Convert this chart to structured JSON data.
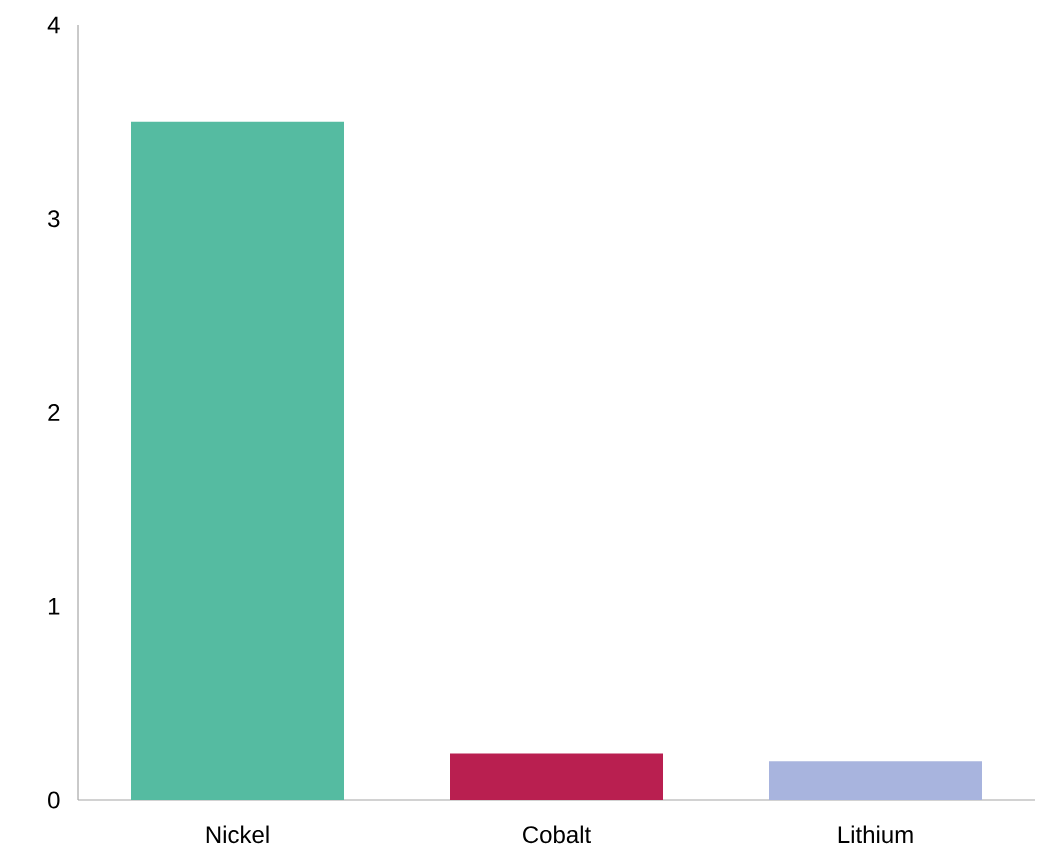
{
  "chart_data": {
    "type": "bar",
    "categories": [
      "Nickel",
      "Cobalt",
      "Lithium"
    ],
    "values": [
      3.5,
      0.24,
      0.2
    ],
    "colors": [
      "#55bba1",
      "#b91f50",
      "#a8b4de"
    ],
    "ylim": [
      0,
      4
    ],
    "yticks": [
      0,
      1,
      2,
      3,
      4
    ]
  }
}
